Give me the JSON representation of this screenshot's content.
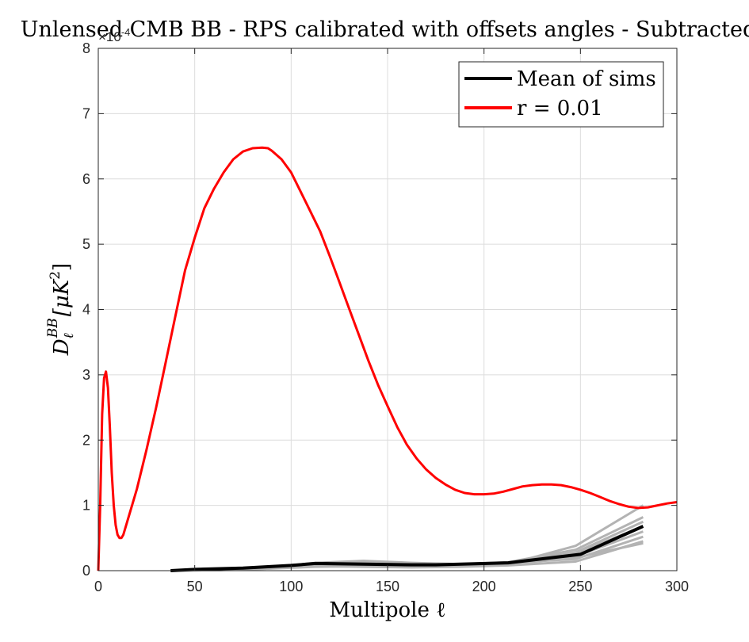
{
  "chart_data": {
    "type": "line",
    "title": "Unlensed CMB BB - RPS calibrated with offsets angles - Subtracted",
    "xlabel": "Multipole ℓ",
    "ylabel": "D_ℓ^BB [μK²]",
    "ylabel_main": "D",
    "ylabel_sub": "ℓ",
    "ylabel_sup": "BB",
    "ylabel_units": "[μK",
    "ylabel_units_sup": "2",
    "ylabel_units_close": "]",
    "y_multiplier": "×10",
    "y_multiplier_exp": "-4",
    "xlim": [
      0,
      300
    ],
    "ylim": [
      0,
      8
    ],
    "xticks": [
      0,
      50,
      100,
      150,
      200,
      250,
      300
    ],
    "yticks": [
      0,
      1,
      2,
      3,
      4,
      5,
      6,
      7,
      8
    ],
    "grid": true,
    "legend_position": "top-right",
    "colors": {
      "theory": "#ff0000",
      "mean": "#000000",
      "sims": "#b3b3b3",
      "grid": "#dcdcdc"
    },
    "series": [
      {
        "name": "Mean of sims",
        "role": "mean",
        "x": [
          37.5,
          50,
          75,
          100,
          112.5,
          137.5,
          162.5,
          175,
          212.5,
          250,
          282.5
        ],
        "y": [
          0.0,
          0.02,
          0.04,
          0.08,
          0.11,
          0.1,
          0.09,
          0.09,
          0.12,
          0.25,
          0.68
        ]
      },
      {
        "name": "r = 0.01",
        "role": "theory",
        "x": [
          0,
          1,
          2,
          3,
          4,
          5,
          6,
          7,
          8,
          9,
          10,
          11,
          12,
          13,
          15,
          17,
          20,
          25,
          30,
          35,
          40,
          45,
          50,
          55,
          60,
          65,
          70,
          75,
          80,
          85,
          88,
          90,
          95,
          100,
          105,
          110,
          115,
          120,
          125,
          130,
          135,
          140,
          145,
          150,
          155,
          160,
          165,
          170,
          175,
          180,
          185,
          190,
          195,
          200,
          205,
          210,
          215,
          220,
          225,
          230,
          235,
          240,
          245,
          250,
          255,
          260,
          265,
          270,
          275,
          280,
          285,
          290,
          295,
          300
        ],
        "y": [
          0.0,
          1.0,
          2.4,
          2.95,
          3.05,
          2.8,
          2.2,
          1.5,
          1.0,
          0.7,
          0.55,
          0.5,
          0.5,
          0.55,
          0.75,
          0.95,
          1.25,
          1.85,
          2.5,
          3.2,
          3.9,
          4.6,
          5.1,
          5.55,
          5.85,
          6.1,
          6.3,
          6.42,
          6.47,
          6.48,
          6.47,
          6.43,
          6.3,
          6.1,
          5.8,
          5.5,
          5.2,
          4.82,
          4.42,
          4.02,
          3.62,
          3.22,
          2.85,
          2.52,
          2.2,
          1.93,
          1.72,
          1.55,
          1.42,
          1.32,
          1.24,
          1.19,
          1.17,
          1.17,
          1.18,
          1.21,
          1.25,
          1.29,
          1.31,
          1.32,
          1.32,
          1.31,
          1.28,
          1.24,
          1.19,
          1.13,
          1.07,
          1.02,
          0.98,
          0.96,
          0.97,
          1.0,
          1.03,
          1.05
        ]
      }
    ],
    "sims": [
      {
        "x": [
          37.5,
          62.5,
          87.5,
          112.5,
          137.5,
          162.5,
          187.5,
          212.5,
          247.5,
          282.5
        ],
        "y": [
          0.0,
          0.02,
          0.05,
          0.1,
          0.13,
          0.1,
          0.08,
          0.1,
          0.38,
          1.0
        ]
      },
      {
        "x": [
          37.5,
          62.5,
          87.5,
          112.5,
          137.5,
          162.5,
          187.5,
          212.5,
          247.5,
          282.5
        ],
        "y": [
          0.0,
          0.01,
          0.04,
          0.12,
          0.15,
          0.12,
          0.1,
          0.13,
          0.32,
          0.82
        ]
      },
      {
        "x": [
          37.5,
          62.5,
          87.5,
          112.5,
          137.5,
          162.5,
          187.5,
          212.5,
          247.5,
          282.5
        ],
        "y": [
          0.0,
          0.02,
          0.06,
          0.09,
          0.08,
          0.07,
          0.09,
          0.11,
          0.28,
          0.75
        ]
      },
      {
        "x": [
          37.5,
          62.5,
          87.5,
          112.5,
          137.5,
          162.5,
          187.5,
          212.5,
          247.5,
          282.5
        ],
        "y": [
          0.0,
          0.01,
          0.03,
          0.08,
          0.09,
          0.08,
          0.07,
          0.09,
          0.22,
          0.6
        ]
      },
      {
        "x": [
          37.5,
          62.5,
          87.5,
          112.5,
          137.5,
          162.5,
          187.5,
          212.5,
          247.5,
          282.5
        ],
        "y": [
          0.0,
          0.02,
          0.05,
          0.1,
          0.11,
          0.09,
          0.08,
          0.12,
          0.18,
          0.52
        ]
      },
      {
        "x": [
          37.5,
          62.5,
          87.5,
          112.5,
          137.5,
          162.5,
          187.5,
          212.5,
          247.5,
          282.5
        ],
        "y": [
          0.0,
          0.01,
          0.04,
          0.07,
          0.06,
          0.05,
          0.06,
          0.08,
          0.14,
          0.45
        ]
      },
      {
        "x": [
          37.5,
          62.5,
          87.5,
          112.5,
          137.5,
          162.5,
          187.5,
          212.5,
          247.5,
          282.5
        ],
        "y": [
          0.0,
          0.02,
          0.05,
          0.11,
          0.12,
          0.1,
          0.09,
          0.1,
          0.2,
          0.42
        ]
      },
      {
        "x": [
          37.5,
          62.5,
          87.5,
          112.5,
          137.5,
          162.5,
          187.5,
          212.5,
          247.5,
          282.5
        ],
        "y": [
          0.0,
          0.01,
          0.03,
          0.06,
          0.07,
          0.06,
          0.07,
          0.09,
          0.26,
          0.68
        ]
      }
    ]
  }
}
